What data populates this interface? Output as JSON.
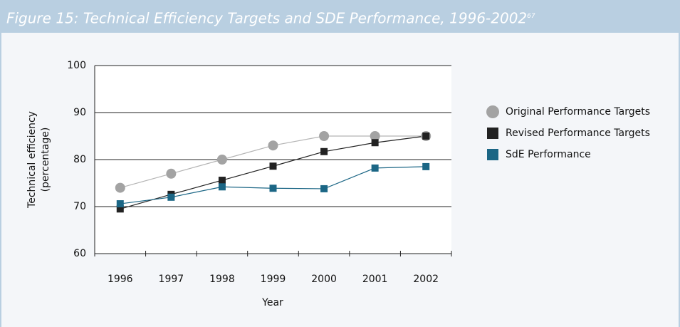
{
  "chart_data": {
    "type": "line",
    "title": "Figure 15: Technical Efficiency Targets and SDE Performance, 1996-2002",
    "title_superscript": "67",
    "ylabel": [
      "Technical efficiency",
      "(percentage)"
    ],
    "xlabel": "Year",
    "categories": [
      "1996",
      "1997",
      "1998",
      "1999",
      "2000",
      "2001",
      "2002"
    ],
    "series": [
      {
        "name": "Original Performance Targets",
        "color": "#a3a3a3",
        "line_color": "#b5b5b5",
        "marker": "circle",
        "values": [
          74,
          77,
          80,
          83,
          85,
          85,
          85
        ]
      },
      {
        "name": "Revised Performance Targets",
        "color": "#222222",
        "line_color": "#222222",
        "marker": "square",
        "values": [
          69.5,
          72.6,
          75.6,
          78.6,
          81.7,
          83.6,
          85
        ]
      },
      {
        "name": "SdE Performance",
        "color": "#1b6685",
        "line_color": "#1b6685",
        "marker": "square",
        "values": [
          70.6,
          72,
          74.2,
          73.9,
          73.8,
          78.2,
          78.5
        ]
      }
    ],
    "ylim": [
      60,
      100
    ],
    "yticks": [
      60,
      70,
      80,
      90,
      100
    ],
    "grid": true,
    "legend": "right"
  }
}
